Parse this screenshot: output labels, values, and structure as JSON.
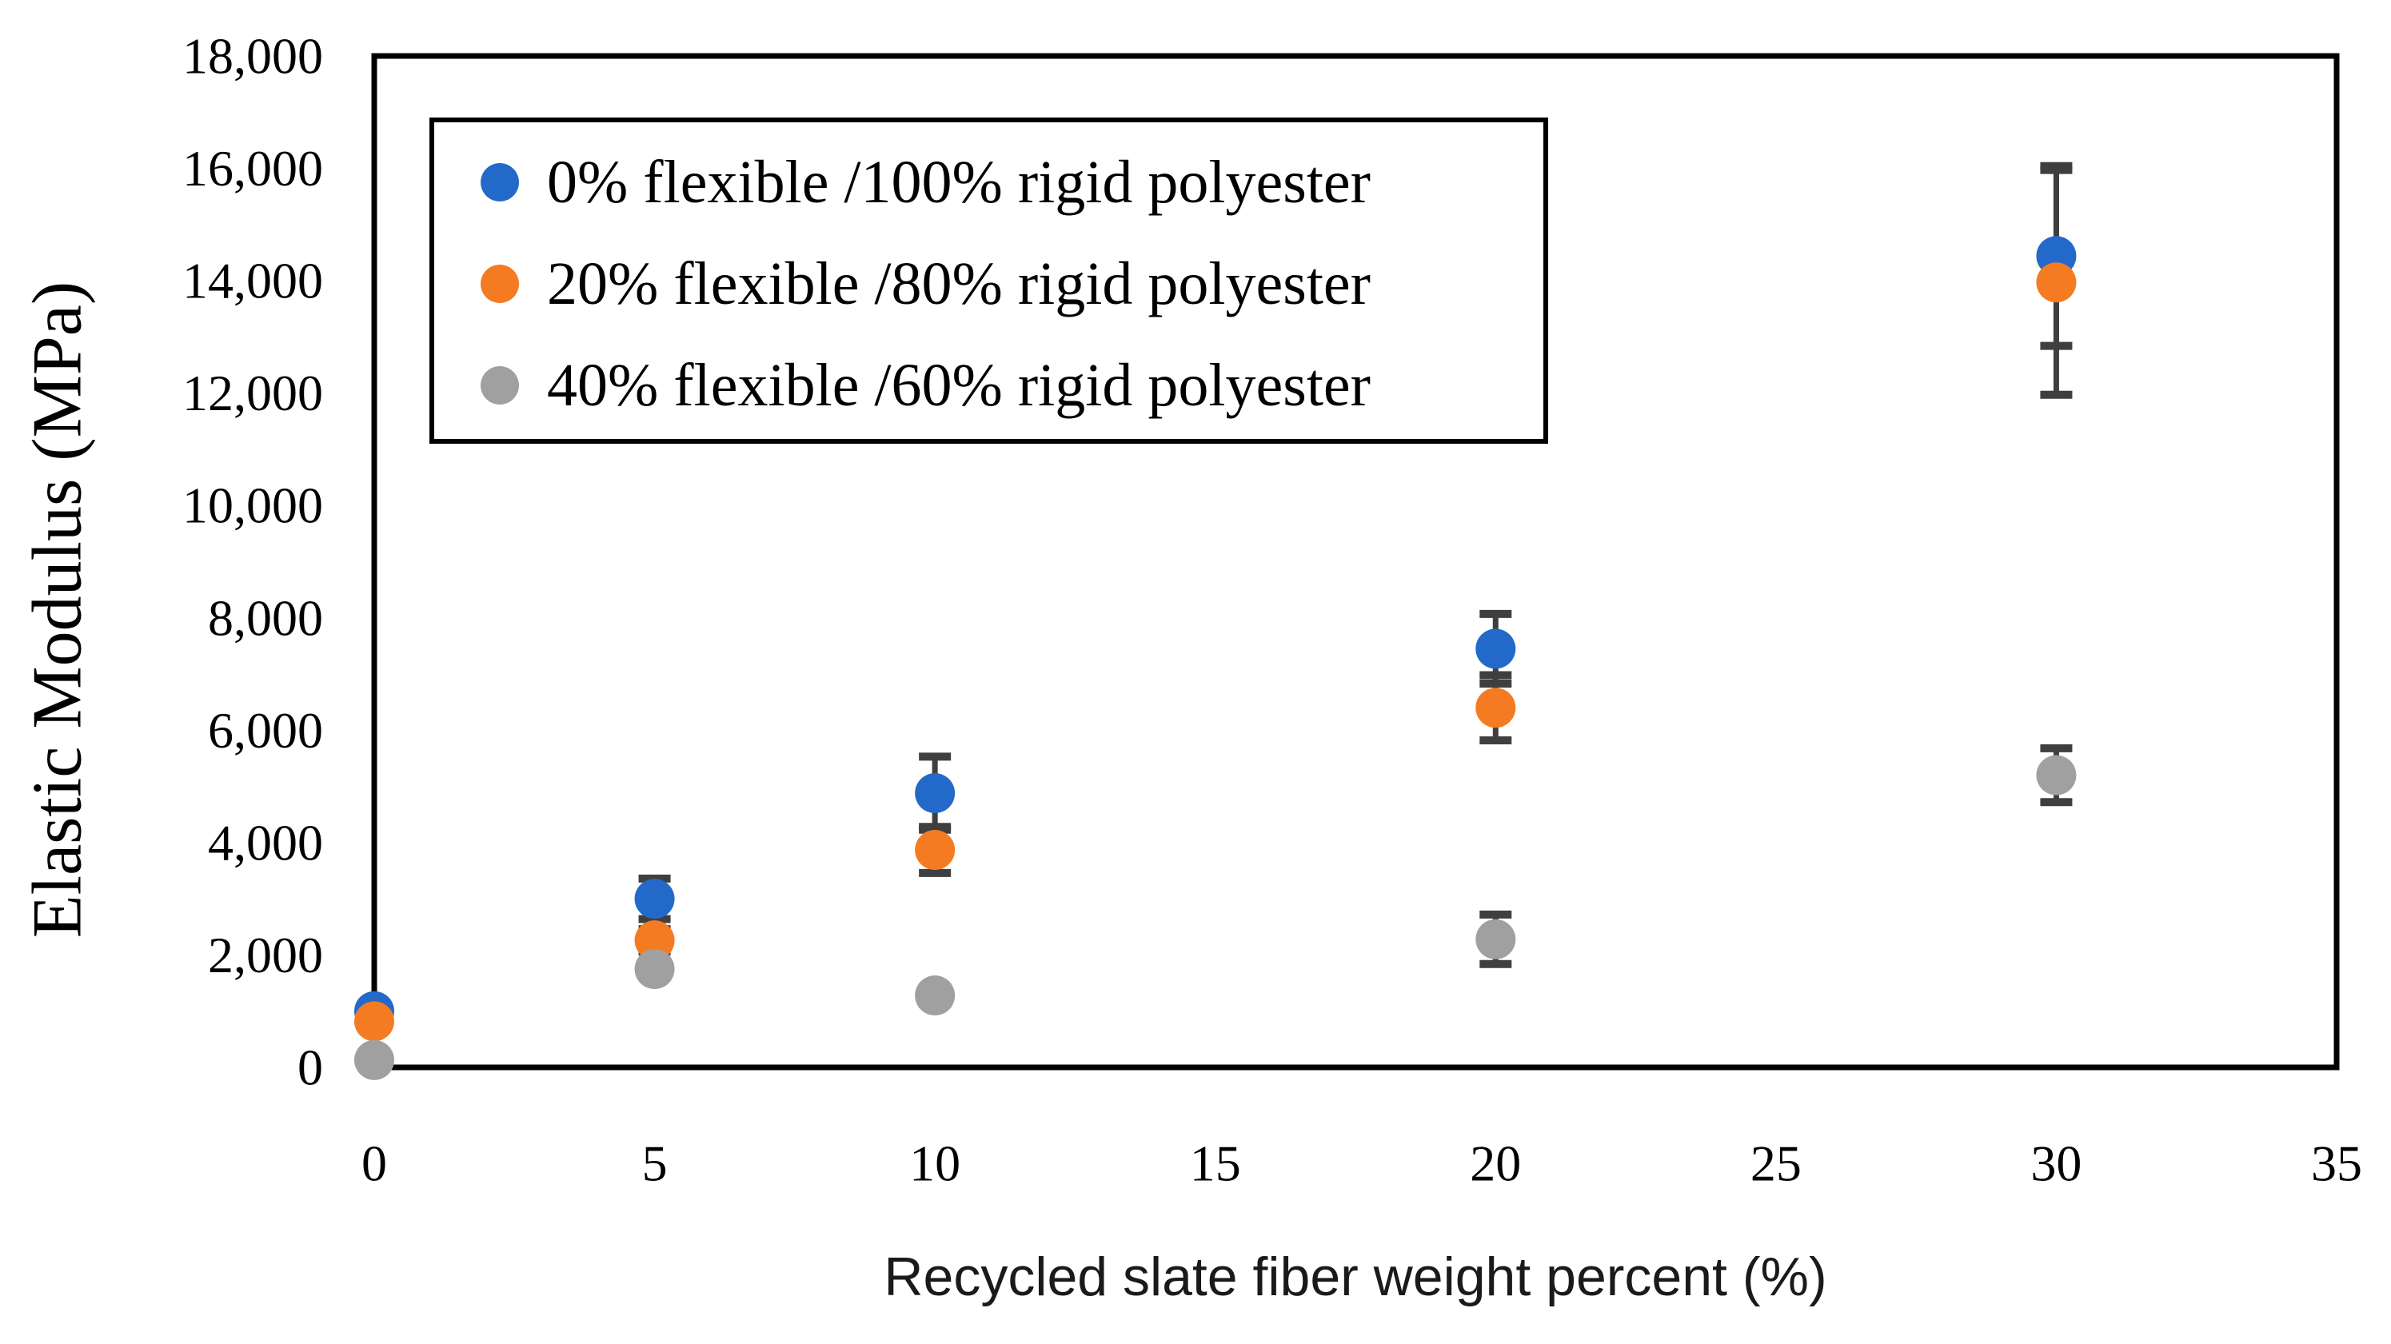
{
  "chart_data": {
    "type": "scatter",
    "title": "",
    "xlabel": "Recycled slate fiber weight percent (%)",
    "ylabel": "Elastic Modulus (MPa)",
    "xlim": [
      0,
      35
    ],
    "ylim": [
      0,
      18000
    ],
    "x_ticks": [
      0,
      5,
      10,
      15,
      20,
      25,
      30,
      35
    ],
    "y_ticks": [
      0,
      2000,
      4000,
      6000,
      8000,
      10000,
      12000,
      14000,
      16000,
      18000
    ],
    "y_tick_labels": [
      "0",
      "2,000",
      "4,000",
      "6,000",
      "8,000",
      "10,000",
      "12,000",
      "14,000",
      "16,000",
      "18,000"
    ],
    "grid": false,
    "legend_position": "inside-top-left",
    "x": [
      0,
      5,
      10,
      20,
      30
    ],
    "series": [
      {
        "name": "0% flexible /100% rigid polyester",
        "color": "#2269C9",
        "values": [
          1000,
          3000,
          4880,
          7450,
          14440
        ],
        "errors": [
          0,
          360,
          650,
          620,
          1600
        ]
      },
      {
        "name": "20% flexible /80% rigid polyester",
        "color": "#F57B22",
        "values": [
          820,
          2260,
          3870,
          6400,
          13970
        ],
        "errors": [
          0,
          200,
          410,
          580,
          2000
        ]
      },
      {
        "name": "40% flexible /60% rigid polyester",
        "color": "#A0A0A0",
        "values": [
          130,
          1750,
          1280,
          2280,
          5200
        ],
        "errors": [
          0,
          120,
          150,
          440,
          480
        ]
      }
    ],
    "error_bar_color": "#3F3F3F",
    "frame_color": "#000000",
    "legend_border_color": "#000000",
    "background_color": "#FFFFFF"
  }
}
